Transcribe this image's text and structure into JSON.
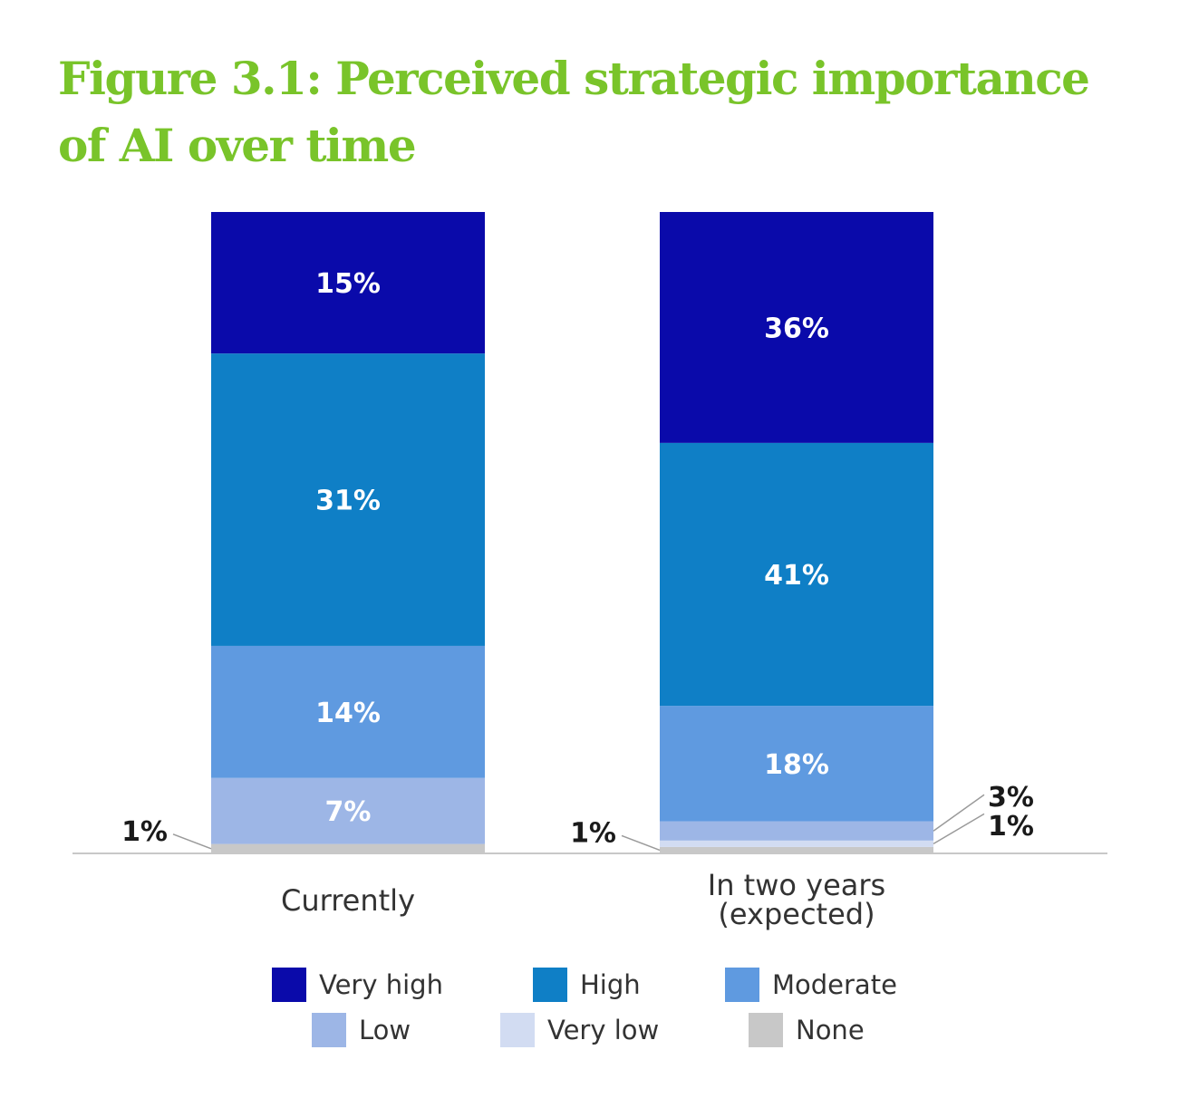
{
  "chart_data": {
    "type": "bar",
    "stacked": true,
    "percent": true,
    "title": "Figure 3.1: Perceived strategic importance of AI over time",
    "categories": [
      "Currently",
      "In two years (expected)"
    ],
    "category_lines": [
      [
        "Currently"
      ],
      [
        "In two years",
        "(expected)"
      ]
    ],
    "series": [
      {
        "name": "None",
        "color": "#c8c8c8",
        "values": [
          1,
          1
        ]
      },
      {
        "name": "Very low",
        "color": "#d2dcf2",
        "values": [
          0,
          1
        ]
      },
      {
        "name": "Low",
        "color": "#9db6e6",
        "values": [
          7,
          3
        ]
      },
      {
        "name": "Moderate",
        "color": "#5f9ae0",
        "values": [
          14,
          18
        ]
      },
      {
        "name": "High",
        "color": "#0f7fc6",
        "values": [
          31,
          41
        ]
      },
      {
        "name": "Very high",
        "color": "#0a0aaa",
        "values": [
          15,
          36
        ]
      }
    ],
    "segment_labels": [
      [
        "1%",
        "",
        "7%",
        "14%",
        "31%",
        "15%"
      ],
      [
        "1%",
        "1%",
        "3%",
        "18%",
        "41%",
        "36%"
      ]
    ],
    "legend": [
      "Very high",
      "High",
      "Moderate",
      "Low",
      "Very low",
      "None"
    ],
    "legend_position": "bottom",
    "grid": false
  }
}
